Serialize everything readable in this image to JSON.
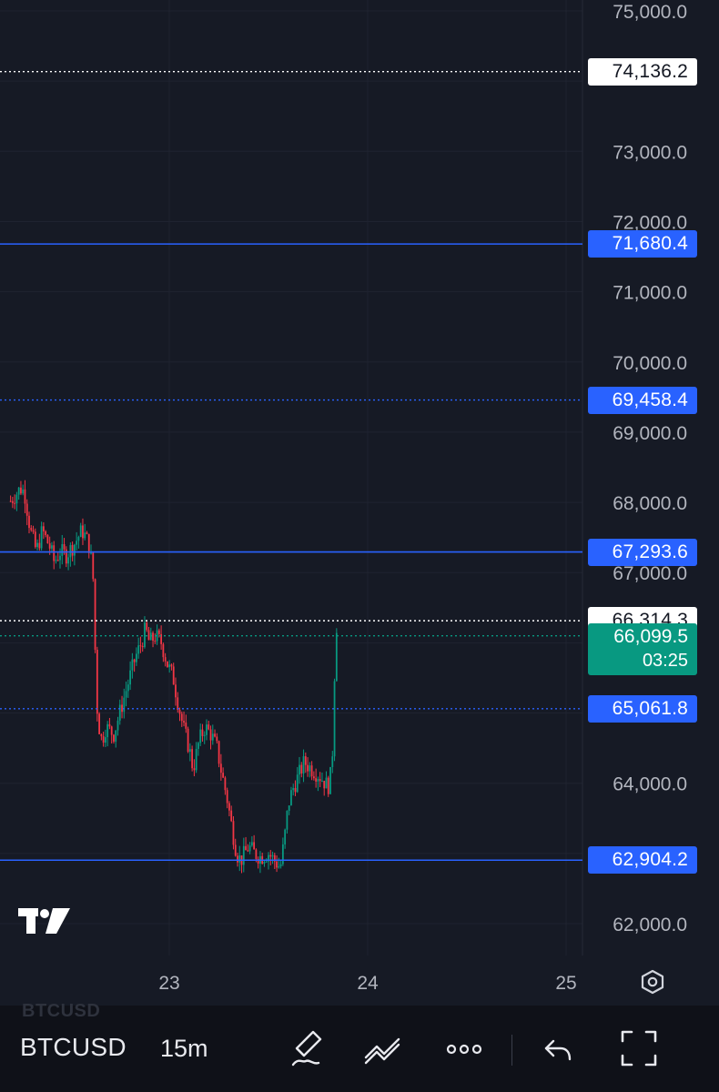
{
  "chart_data": {
    "type": "candlestick",
    "symbol": "BTCUSD",
    "interval": "15m",
    "y_axis": {
      "range": [
        61700,
        75150
      ],
      "tick_labels": [
        "75,000.0",
        "73,000.0",
        "72,000.0",
        "71,000.0",
        "70,000.0",
        "69,000.0",
        "68,000.0",
        "67,000.0",
        "64,000.0",
        "62,000.0"
      ],
      "tick_values": [
        75000,
        73000,
        72000,
        71000,
        70000,
        69000,
        68000,
        67000,
        64000,
        62000
      ]
    },
    "x_axis": {
      "tick_labels": [
        "23",
        "24",
        "25"
      ],
      "tick_positions_days": [
        23,
        24,
        25
      ],
      "range_days": [
        22.2,
        25.0
      ]
    },
    "horizontal_levels": [
      {
        "value": 74136.2,
        "label": "74,136.2",
        "color": "#ffffff",
        "style": "dotted"
      },
      {
        "value": 71680.4,
        "label": "71,680.4",
        "color": "#2962ff",
        "style": "solid"
      },
      {
        "value": 69458.4,
        "label": "69,458.4",
        "color": "#2962ff",
        "style": "dotted"
      },
      {
        "value": 67293.6,
        "label": "67,293.6",
        "color": "#2962ff",
        "style": "solid"
      },
      {
        "value": 66314.3,
        "label": "66,314.3",
        "color": "#ffffff",
        "style": "dotted"
      },
      {
        "value": 65061.8,
        "label": "65,061.8",
        "color": "#2962ff",
        "style": "dotted"
      },
      {
        "value": 62904.2,
        "label": "62,904.2",
        "color": "#2962ff",
        "style": "solid"
      }
    ],
    "last_price": {
      "value": 66099.5,
      "label": "66,099.5",
      "countdown": "03:25",
      "color": "#089981"
    },
    "price_path": [
      [
        22.2,
        68020
      ],
      [
        22.25,
        68200
      ],
      [
        22.27,
        68150
      ],
      [
        22.3,
        67600
      ],
      [
        22.33,
        67300
      ],
      [
        22.36,
        67600
      ],
      [
        22.4,
        67350
      ],
      [
        22.42,
        67150
      ],
      [
        22.45,
        67300
      ],
      [
        22.48,
        67250
      ],
      [
        22.52,
        67400
      ],
      [
        22.56,
        67600
      ],
      [
        22.58,
        67500
      ],
      [
        22.6,
        67350
      ],
      [
        22.62,
        66800
      ],
      [
        22.63,
        65400
      ],
      [
        22.64,
        64900
      ],
      [
        22.66,
        64600
      ],
      [
        22.68,
        64800
      ],
      [
        22.72,
        64700
      ],
      [
        22.75,
        65000
      ],
      [
        22.78,
        65300
      ],
      [
        22.8,
        65500
      ],
      [
        22.83,
        65800
      ],
      [
        22.86,
        66000
      ],
      [
        22.88,
        66200
      ],
      [
        22.9,
        66000
      ],
      [
        22.93,
        66100
      ],
      [
        22.96,
        66000
      ],
      [
        22.99,
        65700
      ],
      [
        23.02,
        65500
      ],
      [
        23.04,
        65200
      ],
      [
        23.07,
        64800
      ],
      [
        23.1,
        64500
      ],
      [
        23.12,
        64200
      ],
      [
        23.15,
        64600
      ],
      [
        23.18,
        64800
      ],
      [
        23.21,
        64700
      ],
      [
        23.24,
        64500
      ],
      [
        23.26,
        64200
      ],
      [
        23.29,
        63800
      ],
      [
        23.32,
        63300
      ],
      [
        23.34,
        63000
      ],
      [
        23.36,
        62900
      ],
      [
        23.4,
        63100
      ],
      [
        23.43,
        63000
      ],
      [
        23.46,
        62950
      ],
      [
        23.5,
        63000
      ],
      [
        23.53,
        62900
      ],
      [
        23.56,
        62800
      ],
      [
        23.58,
        63200
      ],
      [
        23.6,
        63700
      ],
      [
        23.62,
        63900
      ],
      [
        23.65,
        64100
      ],
      [
        23.68,
        64300
      ],
      [
        23.72,
        64200
      ],
      [
        23.76,
        64100
      ],
      [
        23.8,
        63950
      ],
      [
        23.82,
        64200
      ],
      [
        23.84,
        66314
      ],
      [
        23.85,
        66100
      ]
    ],
    "series_colors": {
      "up": "#089981",
      "down": "#f23645"
    }
  },
  "ui": {
    "accent": "#2962ff",
    "background": "#161a25",
    "watermark_icon": "tradingview-logo-icon",
    "icons": [
      "settings-icon",
      "brush-icon",
      "trend-line-icon",
      "more-icon",
      "undo-icon",
      "fullscreen-icon"
    ]
  },
  "toolbar": {
    "symbol": "BTCUSD",
    "interval": "15m"
  }
}
